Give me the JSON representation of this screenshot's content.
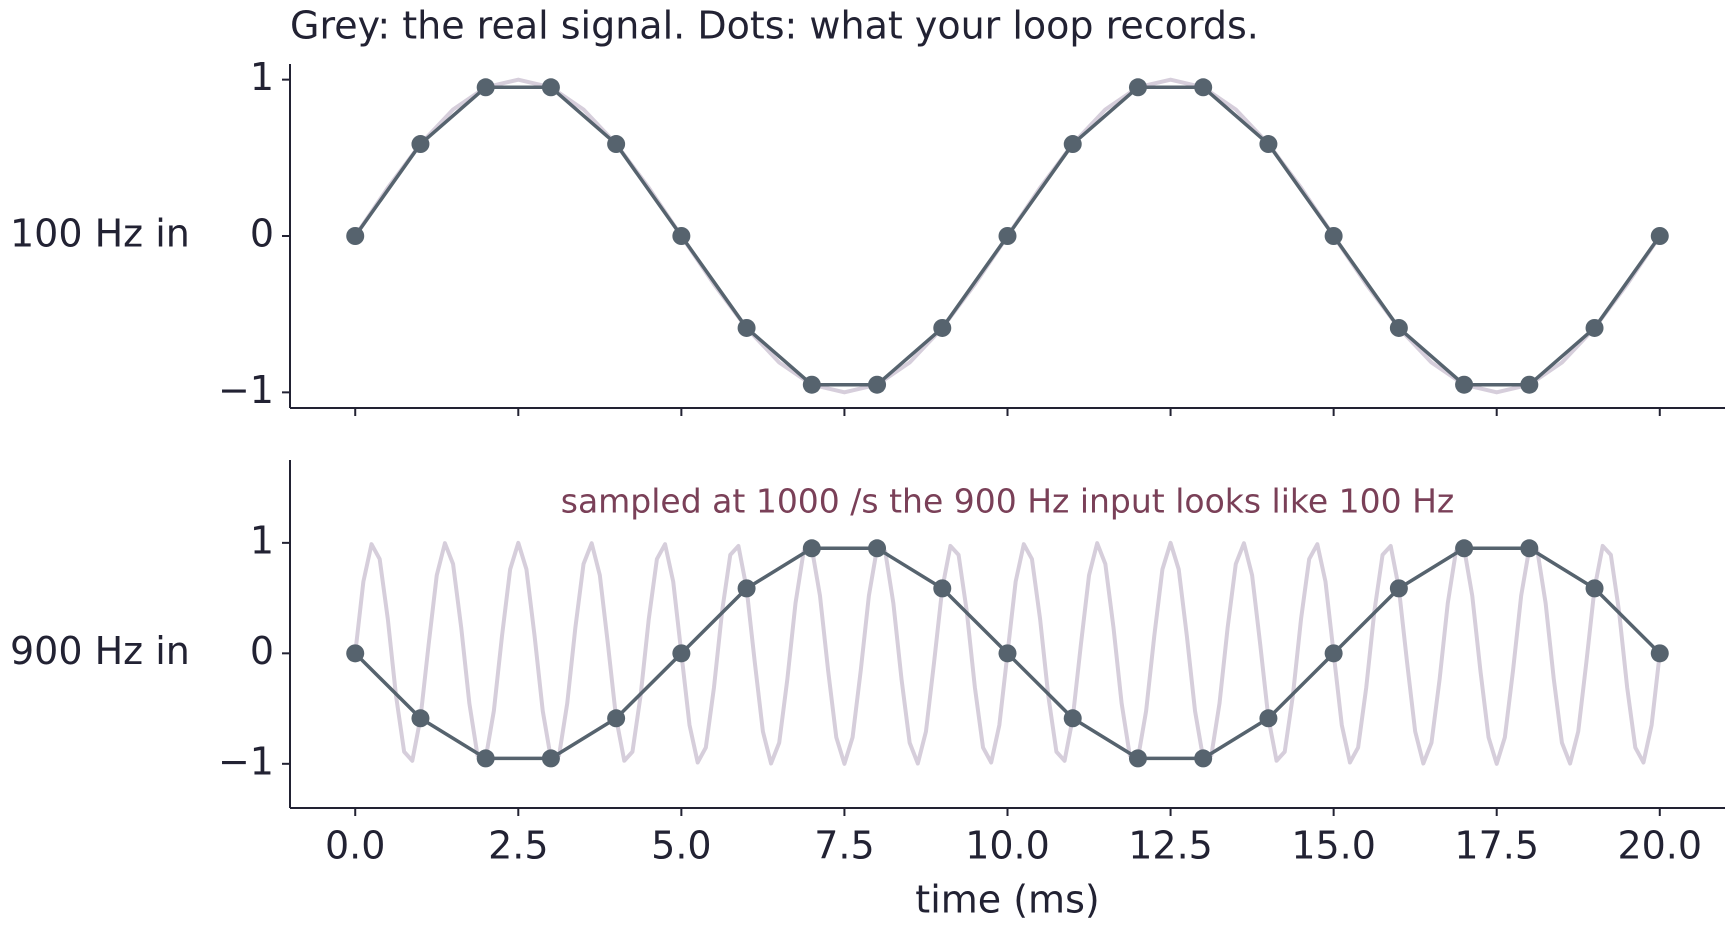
{
  "chart_data": [
    {
      "type": "line",
      "title": "Grey: the real signal.  Dots: what your loop records.",
      "ylabel": "100 Hz in",
      "xlim": [
        -1,
        21
      ],
      "xticks": [
        0,
        2.5,
        5,
        7.5,
        10,
        12.5,
        15,
        17.5,
        20
      ],
      "ylim": [
        -1.1,
        1.1
      ],
      "yticks": [
        {
          "value": -1,
          "label": "−1"
        },
        0,
        1
      ],
      "series": [
        {
          "color": "#d6cedb",
          "x": [
            0,
            0.5,
            1,
            1.5,
            2,
            2.5,
            3,
            3.5,
            4,
            4.5,
            5,
            5.5,
            6,
            6.5,
            7,
            7.5,
            8,
            8.5,
            9,
            9.5,
            10,
            10.5,
            11,
            11.5,
            12,
            12.5,
            13,
            13.5,
            14,
            14.5,
            15,
            15.5,
            16,
            16.5,
            17,
            17.5,
            18,
            18.5,
            19,
            19.5,
            20
          ],
          "values": [
            0,
            0.309,
            0.588,
            0.809,
            0.951,
            1,
            0.951,
            0.809,
            0.588,
            0.309,
            0,
            -0.309,
            -0.588,
            -0.809,
            -0.951,
            -1,
            -0.951,
            -0.809,
            -0.588,
            -0.309,
            0,
            0.309,
            0.588,
            0.809,
            0.951,
            1,
            0.951,
            0.809,
            0.588,
            0.309,
            0,
            -0.309,
            -0.588,
            -0.809,
            -0.951,
            -1,
            -0.951,
            -0.809,
            -0.588,
            -0.309,
            0
          ]
        },
        {
          "color": "#56636e",
          "markers": true,
          "x": [
            0,
            1,
            2,
            3,
            4,
            5,
            6,
            7,
            8,
            9,
            10,
            11,
            12,
            13,
            14,
            15,
            16,
            17,
            18,
            19,
            20
          ],
          "values": [
            0,
            0.588,
            0.951,
            0.951,
            0.588,
            0,
            -0.588,
            -0.951,
            -0.951,
            -0.588,
            0,
            0.588,
            0.951,
            0.951,
            0.588,
            0,
            -0.588,
            -0.951,
            -0.951,
            -0.588,
            0
          ]
        }
      ]
    },
    {
      "type": "line",
      "ylabel": "900 Hz in",
      "xlabel": "time (ms)",
      "annotation": "sampled at 1000 /s the 900 Hz input looks like 100 Hz",
      "xlim": [
        -1,
        21
      ],
      "xticks": [
        {
          "value": 0,
          "label": "0.0"
        },
        2.5,
        {
          "value": 5,
          "label": "5.0"
        },
        7.5,
        {
          "value": 10,
          "label": "10.0"
        },
        12.5,
        {
          "value": 15,
          "label": "15.0"
        },
        17.5,
        {
          "value": 20,
          "label": "20.0"
        }
      ],
      "ylim": [
        -1.4,
        1.75
      ],
      "yticks": [
        {
          "value": -1,
          "label": "−1"
        },
        0,
        1
      ],
      "series": [
        {
          "color": "#d6cedb",
          "x": [
            0,
            0.125,
            0.25,
            0.375,
            0.5,
            0.625,
            0.75,
            0.875,
            1,
            1.125,
            1.25,
            1.375,
            1.5,
            1.625,
            1.75,
            1.875,
            2,
            2.125,
            2.25,
            2.375,
            2.5,
            2.625,
            2.75,
            2.875,
            3,
            3.125,
            3.25,
            3.375,
            3.5,
            3.625,
            3.75,
            3.875,
            4,
            4.125,
            4.25,
            4.375,
            4.5,
            4.625,
            4.75,
            4.875,
            5,
            5.125,
            5.25,
            5.375,
            5.5,
            5.625,
            5.75,
            5.875,
            6,
            6.125,
            6.25,
            6.375,
            6.5,
            6.625,
            6.75,
            6.875,
            7,
            7.125,
            7.25,
            7.375,
            7.5,
            7.625,
            7.75,
            7.875,
            8,
            8.125,
            8.25,
            8.375,
            8.5,
            8.625,
            8.75,
            8.875,
            9,
            9.125,
            9.25,
            9.375,
            9.5,
            9.625,
            9.75,
            9.875,
            10,
            10.125,
            10.25,
            10.375,
            10.5,
            10.625,
            10.75,
            10.875,
            11,
            11.125,
            11.25,
            11.375,
            11.5,
            11.625,
            11.75,
            11.875,
            12,
            12.125,
            12.25,
            12.375,
            12.5,
            12.625,
            12.75,
            12.875,
            13,
            13.125,
            13.25,
            13.375,
            13.5,
            13.625,
            13.75,
            13.875,
            14,
            14.125,
            14.25,
            14.375,
            14.5,
            14.625,
            14.75,
            14.875,
            15,
            15.125,
            15.25,
            15.375,
            15.5,
            15.625,
            15.75,
            15.875,
            16,
            16.125,
            16.25,
            16.375,
            16.5,
            16.625,
            16.75,
            16.875,
            17,
            17.125,
            17.25,
            17.375,
            17.5,
            17.625,
            17.75,
            17.875,
            18,
            18.125,
            18.25,
            18.375,
            18.5,
            18.625,
            18.75,
            18.875,
            19,
            19.125,
            19.25,
            19.375,
            19.5,
            19.625,
            19.75,
            19.875,
            20
          ],
          "values": [
            0,
            0.649,
            0.988,
            0.853,
            0.309,
            -0.383,
            -0.891,
            -0.972,
            -0.588,
            0.078,
            0.707,
            0.997,
            0.809,
            0.233,
            -0.454,
            -0.924,
            -0.951,
            -0.522,
            0.156,
            0.76,
            1,
            0.76,
            0.156,
            -0.522,
            -0.951,
            -0.924,
            -0.454,
            0.233,
            0.809,
            0.997,
            0.707,
            0.078,
            -0.588,
            -0.972,
            -0.891,
            -0.383,
            0.309,
            0.853,
            0.988,
            0.649,
            0,
            -0.649,
            -0.988,
            -0.853,
            -0.309,
            0.383,
            0.891,
            0.972,
            0.588,
            -0.078,
            -0.707,
            -0.997,
            -0.809,
            -0.233,
            0.454,
            0.924,
            0.951,
            0.522,
            -0.156,
            -0.76,
            -1,
            -0.76,
            -0.156,
            0.522,
            0.951,
            0.924,
            0.454,
            -0.233,
            -0.809,
            -0.997,
            -0.707,
            -0.078,
            0.588,
            0.972,
            0.891,
            0.383,
            -0.309,
            -0.853,
            -0.988,
            -0.649,
            0,
            0.649,
            0.988,
            0.853,
            0.309,
            -0.383,
            -0.891,
            -0.972,
            -0.588,
            0.078,
            0.707,
            0.997,
            0.809,
            0.233,
            -0.454,
            -0.924,
            -0.951,
            -0.522,
            0.156,
            0.76,
            1,
            0.76,
            0.156,
            -0.522,
            -0.951,
            -0.924,
            -0.454,
            0.233,
            0.809,
            0.997,
            0.707,
            0.078,
            -0.588,
            -0.972,
            -0.891,
            -0.383,
            0.309,
            0.853,
            0.988,
            0.649,
            0,
            -0.649,
            -0.988,
            -0.853,
            -0.309,
            0.383,
            0.891,
            0.972,
            0.588,
            -0.078,
            -0.707,
            -0.997,
            -0.809,
            -0.233,
            0.454,
            0.924,
            0.951,
            0.522,
            -0.156,
            -0.76,
            -1,
            -0.76,
            -0.156,
            0.522,
            0.951,
            0.924,
            0.454,
            -0.233,
            -0.809,
            -0.997,
            -0.707,
            -0.078,
            0.588,
            0.972,
            0.891,
            0.383,
            -0.309,
            -0.853,
            -0.988,
            -0.649,
            0
          ]
        },
        {
          "color": "#56636e",
          "markers": true,
          "x": [
            0,
            1,
            2,
            3,
            4,
            5,
            6,
            7,
            8,
            9,
            10,
            11,
            12,
            13,
            14,
            15,
            16,
            17,
            18,
            19,
            20
          ],
          "values": [
            0,
            -0.588,
            -0.951,
            -0.951,
            -0.588,
            0,
            0.588,
            0.951,
            0.951,
            0.588,
            0,
            -0.588,
            -0.951,
            -0.951,
            -0.588,
            0,
            0.588,
            0.951,
            0.951,
            0.588,
            0
          ]
        }
      ]
    }
  ]
}
